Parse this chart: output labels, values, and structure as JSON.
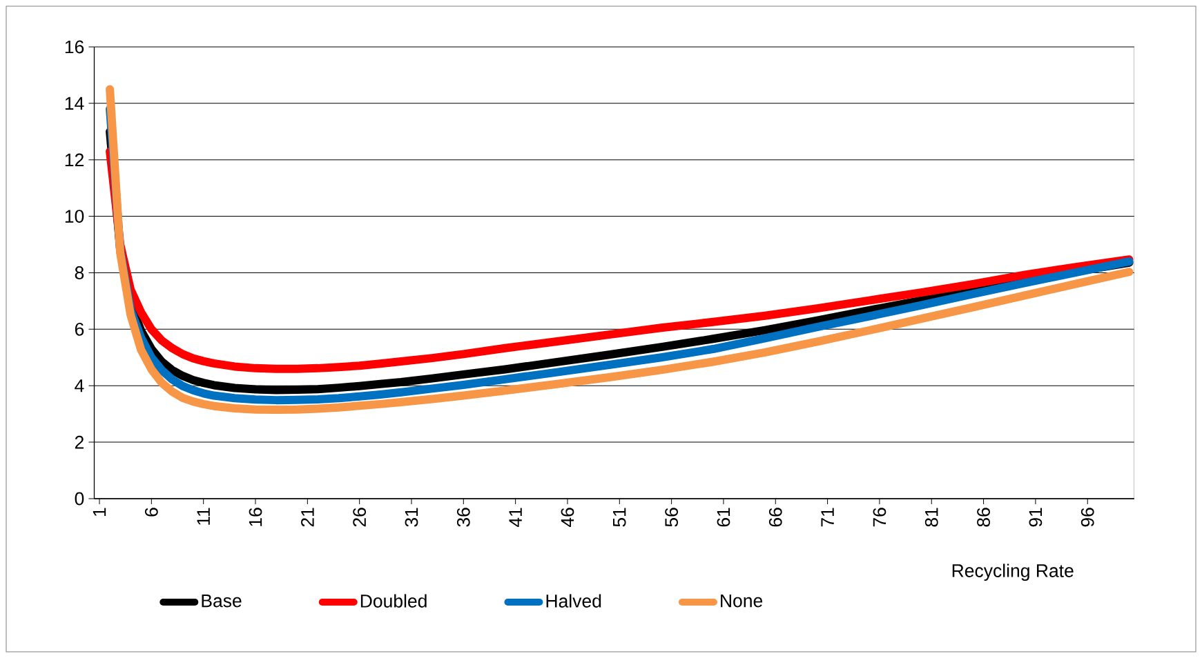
{
  "chart_data": {
    "type": "line",
    "xlabel": "Recycling Rate",
    "x": [
      2,
      3,
      4,
      5,
      6,
      7,
      8,
      9,
      10,
      11,
      12,
      14,
      16,
      18,
      20,
      22,
      24,
      26,
      28,
      30,
      33,
      36,
      40,
      45,
      50,
      55,
      60,
      65,
      70,
      75,
      80,
      85,
      90,
      95,
      100
    ],
    "series": [
      {
        "name": "Base",
        "color": "#000000",
        "values": [
          13.0,
          8.8,
          6.9,
          5.95,
          5.3,
          4.85,
          4.55,
          4.35,
          4.2,
          4.1,
          4.02,
          3.92,
          3.87,
          3.85,
          3.86,
          3.88,
          3.93,
          3.99,
          4.06,
          4.13,
          4.26,
          4.4,
          4.58,
          4.84,
          5.1,
          5.37,
          5.66,
          5.97,
          6.31,
          6.67,
          7.02,
          7.38,
          7.72,
          8.05,
          8.36
        ]
      },
      {
        "name": "Doubled",
        "color": "#ff0000",
        "values": [
          12.3,
          9.0,
          7.4,
          6.6,
          6.0,
          5.6,
          5.33,
          5.12,
          4.97,
          4.87,
          4.79,
          4.68,
          4.62,
          4.6,
          4.6,
          4.62,
          4.66,
          4.71,
          4.78,
          4.86,
          4.98,
          5.12,
          5.33,
          5.57,
          5.81,
          6.05,
          6.26,
          6.48,
          6.74,
          7.02,
          7.3,
          7.6,
          7.93,
          8.21,
          8.47
        ]
      },
      {
        "name": "Halved",
        "color": "#0070c0",
        "values": [
          13.8,
          8.8,
          6.7,
          5.7,
          5.0,
          4.55,
          4.22,
          3.99,
          3.84,
          3.73,
          3.65,
          3.56,
          3.51,
          3.49,
          3.5,
          3.52,
          3.56,
          3.62,
          3.69,
          3.77,
          3.9,
          4.03,
          4.23,
          4.48,
          4.74,
          5.0,
          5.3,
          5.68,
          6.08,
          6.46,
          6.85,
          7.25,
          7.64,
          8.02,
          8.4
        ]
      },
      {
        "name": "None",
        "color": "#f79646",
        "values": [
          14.5,
          8.7,
          6.5,
          5.27,
          4.58,
          4.1,
          3.79,
          3.57,
          3.44,
          3.35,
          3.28,
          3.2,
          3.16,
          3.15,
          3.16,
          3.19,
          3.23,
          3.29,
          3.35,
          3.42,
          3.53,
          3.65,
          3.83,
          4.06,
          4.3,
          4.56,
          4.85,
          5.18,
          5.56,
          5.96,
          6.37,
          6.78,
          7.2,
          7.62,
          8.03
        ]
      }
    ],
    "xlim": [
      0.5,
      100.5
    ],
    "xticks": [
      1,
      6,
      11,
      16,
      21,
      26,
      31,
      36,
      41,
      46,
      51,
      56,
      61,
      66,
      71,
      76,
      81,
      86,
      91,
      96
    ],
    "ylim": [
      0,
      16
    ],
    "yticks": [
      0,
      2,
      4,
      6,
      8,
      10,
      12,
      14,
      16
    ],
    "grid": "y",
    "legend": "bottom",
    "marker": "none",
    "line_style": "solid"
  }
}
